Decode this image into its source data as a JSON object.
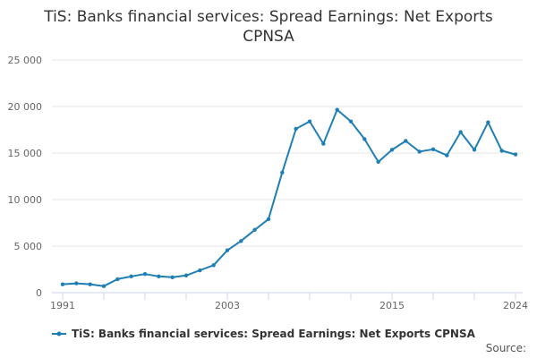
{
  "title_line1": "TiS: Banks financial services: Spread Earnings: Net Exports",
  "title_line2": "CPNSA",
  "source_label": "Source:",
  "colors": {
    "series": "#1f7fb5",
    "grid": "#e6e6e6",
    "axis": "#ccd6eb"
  },
  "chart_data": {
    "type": "line",
    "title": "TiS: Banks financial services: Spread Earnings: Net Exports CPNSA",
    "xlabel": "",
    "ylabel": "",
    "xlim": [
      1991,
      2024
    ],
    "ylim": [
      0,
      25000
    ],
    "y_ticks": [
      0,
      5000,
      10000,
      15000,
      20000,
      25000
    ],
    "y_tick_labels": [
      "0",
      "5 000",
      "10 000",
      "15 000",
      "20 000",
      "25 000"
    ],
    "x_ticks": [
      1991,
      2003,
      2015,
      2024
    ],
    "x_tick_labels": [
      "1991",
      "2003",
      "2015",
      "2024"
    ],
    "grid": true,
    "legend_position": "bottom",
    "series": [
      {
        "name": "TiS: Banks financial services: Spread Earnings: Net Exports CPNSA",
        "x": [
          1991,
          1992,
          1993,
          1994,
          1995,
          1996,
          1997,
          1998,
          1999,
          2000,
          2001,
          2002,
          2003,
          2004,
          2005,
          2006,
          2007,
          2008,
          2009,
          2010,
          2011,
          2012,
          2013,
          2014,
          2015,
          2016,
          2017,
          2018,
          2019,
          2020,
          2021,
          2022,
          2023,
          2024
        ],
        "values": [
          900,
          1000,
          900,
          700,
          1450,
          1750,
          2000,
          1750,
          1650,
          1850,
          2400,
          2950,
          4550,
          5550,
          6750,
          7900,
          12900,
          17600,
          18400,
          16000,
          19650,
          18400,
          16500,
          14050,
          15350,
          16300,
          15150,
          15400,
          14750,
          17250,
          15350,
          18300,
          15250,
          14850
        ]
      }
    ]
  }
}
